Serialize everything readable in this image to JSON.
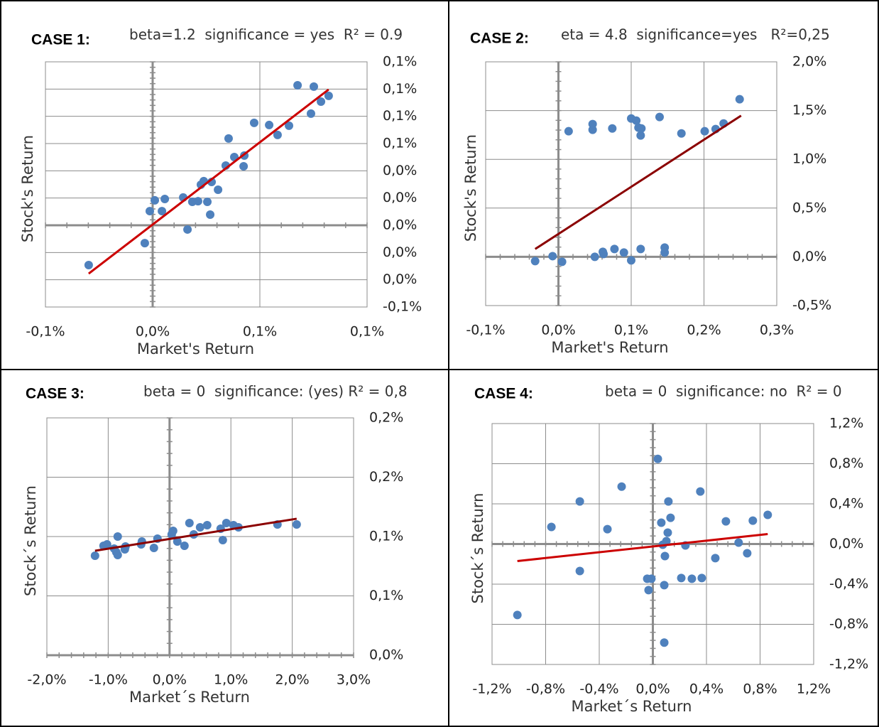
{
  "chart_data": [
    {
      "type": "scatter",
      "label": "CASE 1:",
      "title": "beta=1.2  significance = yes  R² = 0.9",
      "x_label": "Market's Return",
      "y_label": "Stock's Return",
      "xlim": [
        -0.06,
        0.12
      ],
      "ylim": [
        -0.06,
        0.12
      ],
      "xticks": [
        {
          "value": -0.06,
          "label": "-0,1%"
        },
        {
          "value": 0,
          "label": "0,0%"
        },
        {
          "value": 0.06,
          "label": "0,1%"
        },
        {
          "value": 0.12,
          "label": "0,1%"
        }
      ],
      "yticks": [
        {
          "value": -0.06,
          "label": "-0,1%"
        },
        {
          "value": -0.04,
          "label": "0,0%"
        },
        {
          "value": -0.02,
          "label": "0,0%"
        },
        {
          "value": 0,
          "label": "0,0%"
        },
        {
          "value": 0.02,
          "label": "0,0%"
        },
        {
          "value": 0.04,
          "label": "0,0%"
        },
        {
          "value": 0.06,
          "label": "0,1%"
        },
        {
          "value": 0.08,
          "label": "0,1%"
        },
        {
          "value": 0.1,
          "label": "0,1%"
        },
        {
          "value": 0.12,
          "label": "0,1%"
        }
      ],
      "grid": true,
      "series": [
        {
          "color": "#4f81bd",
          "x": [
            -0.0358,
            -0.0044,
            -0.0016,
            0.0012,
            0.0052,
            0.0068,
            0.0171,
            0.0195,
            0.0222,
            0.0254,
            0.027,
            0.0286,
            0.0306,
            0.0322,
            0.033,
            0.0366,
            0.0409,
            0.0425,
            0.0457,
            0.0509,
            0.0513,
            0.0568,
            0.0652,
            0.0699,
            0.0763,
            0.0811,
            0.0886,
            0.0902,
            0.0942,
            0.0985
          ],
          "values": [
            -0.0292,
            -0.0131,
            0.0104,
            0.0183,
            0.0104,
            0.0193,
            0.0204,
            -0.0031,
            0.0172,
            0.0177,
            0.0298,
            0.0324,
            0.0172,
            0.0078,
            0.0318,
            0.0261,
            0.0438,
            0.0637,
            0.0501,
            0.0433,
            0.0512,
            0.0752,
            0.0736,
            0.0663,
            0.0731,
            0.1028,
            0.082,
            0.1018,
            0.0908,
            0.095
          ]
        }
      ],
      "trendline": {
        "color": "#cc0000",
        "x": [
          -0.0358,
          0.0985
        ],
        "values": [
          -0.0355,
          0.0997
        ]
      }
    },
    {
      "type": "scatter",
      "label": "CASE 2:",
      "title": "eta = 4.8  significance=yes   R²=0,25",
      "x_label": "Market's Return",
      "y_label": "Stock's Return",
      "xlim": [
        -0.1,
        0.3
      ],
      "ylim": [
        -0.5,
        2.0
      ],
      "xticks": [
        {
          "value": -0.1,
          "label": "-0,1%"
        },
        {
          "value": 0,
          "label": "0,0%"
        },
        {
          "value": 0.1,
          "label": "0,1%"
        },
        {
          "value": 0.2,
          "label": "0,2%"
        },
        {
          "value": 0.3,
          "label": "0,3%"
        }
      ],
      "yticks": [
        {
          "value": -0.5,
          "label": "-0,5%"
        },
        {
          "value": 0,
          "label": "0,0%"
        },
        {
          "value": 0.5,
          "label": "0,5%"
        },
        {
          "value": 1.0,
          "label": "1,0%"
        },
        {
          "value": 1.5,
          "label": "1,5%"
        },
        {
          "value": 2.0,
          "label": "2,0%"
        }
      ],
      "grid": true,
      "series": [
        {
          "color": "#4f81bd",
          "x": [
            -0.032,
            -0.008,
            0.005,
            0.014,
            0.047,
            0.047,
            0.05,
            0.061,
            0.062,
            0.074,
            0.077,
            0.09,
            0.1,
            0.1,
            0.107,
            0.11,
            0.113,
            0.113,
            0.114,
            0.139,
            0.146,
            0.146,
            0.169,
            0.201,
            0.216,
            0.227,
            0.249
          ],
          "values": [
            -0.044,
            0.007,
            -0.051,
            1.288,
            1.303,
            1.361,
            0,
            0.051,
            0.029,
            1.317,
            0.08,
            0.044,
            -0.036,
            1.419,
            1.397,
            1.325,
            0.08,
            1.245,
            1.317,
            1.434,
            0.095,
            0.044,
            1.266,
            1.288,
            1.31,
            1.368,
            1.616
          ]
        }
      ],
      "trendline": {
        "color": "#8b0000",
        "x": [
          -0.032,
          0.251
        ],
        "values": [
          0.08,
          1.448
        ]
      }
    },
    {
      "type": "scatter",
      "label": "CASE 3:",
      "title": "beta = 0  significance: (yes) R² = 0,8",
      "x_label": "Market´s Return",
      "y_label": "Stock´s Return",
      "xlim": [
        -2,
        3
      ],
      "ylim": [
        0,
        0.2
      ],
      "xticks": [
        {
          "value": -2,
          "label": "-2,0%"
        },
        {
          "value": -1,
          "label": "-1,0%"
        },
        {
          "value": 0,
          "label": "0,0%"
        },
        {
          "value": 1,
          "label": "1,0%"
        },
        {
          "value": 2,
          "label": "2,0%"
        },
        {
          "value": 3,
          "label": "3,0%"
        }
      ],
      "yticks": [
        {
          "value": 0,
          "label": "0,0%"
        },
        {
          "value": 0.05,
          "label": "0,1%"
        },
        {
          "value": 0.1,
          "label": "0,1%"
        },
        {
          "value": 0.15,
          "label": "0,2%"
        },
        {
          "value": 0.2,
          "label": "0,2%"
        }
      ],
      "grid": true,
      "series": [
        {
          "color": "#4f81bd",
          "x": [
            -1.215,
            -1.076,
            -1.019,
            -0.903,
            -0.868,
            -0.845,
            -0.845,
            -0.729,
            -0.718,
            -0.463,
            -0.451,
            -0.255,
            -0.197,
            0.035,
            0.058,
            0.127,
            0.243,
            0.324,
            0.394,
            0.498,
            0.613,
            0.868,
            0.833,
            0.926,
            1.042,
            1.123,
            1.759,
            2.072
          ],
          "values": [
            0.0838,
            0.0922,
            0.0934,
            0.0898,
            0.0868,
            0.0844,
            0.1,
            0.0892,
            0.0916,
            0.0934,
            0.0958,
            0.0904,
            0.0982,
            0.1018,
            0.1048,
            0.0958,
            0.0922,
            0.1114,
            0.1018,
            0.1078,
            0.1096,
            0.097,
            0.1066,
            0.1114,
            0.1096,
            0.1078,
            0.1102,
            0.1102
          ]
        }
      ],
      "trendline": {
        "color": "#8b0000",
        "x": [
          -1.215,
          2.072
        ],
        "values": [
          0.088,
          0.115
        ]
      }
    },
    {
      "type": "scatter",
      "label": "CASE 4:",
      "title": "beta = 0  significance: no  R² = 0",
      "x_label": "Market´s Return",
      "y_label": "Stock´s Return",
      "xlim": [
        -1.2,
        1.2
      ],
      "ylim": [
        -1.2,
        1.2
      ],
      "xticks": [
        {
          "value": -1.2,
          "label": "-1,2%"
        },
        {
          "value": -0.8,
          "label": "-0,8%"
        },
        {
          "value": -0.4,
          "label": "-0,4%"
        },
        {
          "value": 0,
          "label": "0,0%"
        },
        {
          "value": 0.4,
          "label": "0,4%"
        },
        {
          "value": 0.8,
          "label": "0,8%"
        },
        {
          "value": 1.2,
          "label": "1,2%"
        }
      ],
      "yticks": [
        {
          "value": -1.2,
          "label": "-1,2%"
        },
        {
          "value": -0.8,
          "label": "-0,8%"
        },
        {
          "value": -0.4,
          "label": "-0,4%"
        },
        {
          "value": 0,
          "label": "0,0%"
        },
        {
          "value": 0.4,
          "label": "0,4%"
        },
        {
          "value": 0.8,
          "label": "0,8%"
        },
        {
          "value": 1.2,
          "label": "1,2%"
        }
      ],
      "grid": true,
      "series": [
        {
          "color": "#4f81bd",
          "x": [
            -1.011,
            -0.757,
            -0.545,
            -0.545,
            -0.339,
            -0.233,
            -0.042,
            -0.011,
            -0.032,
            0.037,
            0.063,
            0.074,
            0.085,
            0.09,
            0.101,
            0.111,
            0.116,
            0.132,
            0.085,
            0.212,
            0.243,
            0.291,
            0.365,
            0.354,
            0.466,
            0.545,
            0.64,
            0.704,
            0.746,
            0.857
          ],
          "values": [
            -0.707,
            0.17,
            0.424,
            -0.269,
            0.148,
            0.572,
            -0.346,
            -0.346,
            -0.459,
            0.848,
            0.212,
            -0.007,
            -0.41,
            -0.12,
            0.028,
            0.113,
            0.424,
            0.261,
            -0.982,
            -0.339,
            -0.014,
            -0.346,
            -0.339,
            0.523,
            -0.141,
            0.226,
            0.014,
            -0.092,
            0.233,
            0.29
          ]
        }
      ],
      "trendline": {
        "color": "#cc0000",
        "x": [
          -1.011,
          0.857
        ],
        "values": [
          -0.17,
          0.099
        ]
      }
    }
  ]
}
